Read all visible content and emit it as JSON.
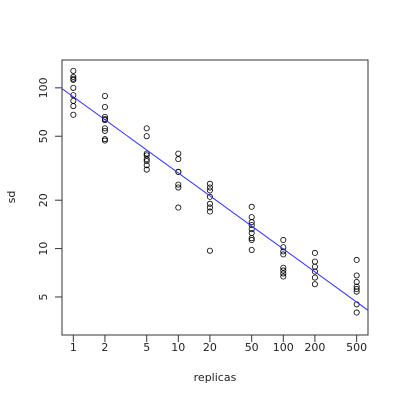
{
  "chart_data": {
    "type": "scatter",
    "x_label": "replicas",
    "y_label": "sd",
    "x_log": true,
    "y_log": true,
    "xlim": [
      0.78,
      641
    ],
    "ylim": [
      2.9,
      149
    ],
    "xticks": [
      1,
      2,
      5,
      10,
      20,
      50,
      100,
      200,
      500
    ],
    "yticks": [
      5,
      10,
      20,
      50,
      100
    ],
    "series": [
      {
        "x": [
          1,
          1,
          1,
          1,
          1,
          1,
          1,
          1,
          1,
          2,
          2,
          2,
          2,
          2,
          2,
          2,
          2,
          2,
          5,
          5,
          5,
          5,
          5,
          5,
          5,
          5,
          10,
          10,
          10,
          10,
          10,
          10,
          10,
          20,
          20,
          20,
          20,
          20,
          20,
          20,
          20,
          50,
          50,
          50,
          50,
          50,
          50,
          50,
          50,
          50,
          100,
          100,
          100,
          100,
          100,
          100,
          100,
          100,
          200,
          200,
          200,
          200,
          200,
          200,
          500,
          500,
          500,
          500,
          500,
          500,
          500,
          500
        ],
        "values": [
          127.6,
          117,
          114,
          112,
          100,
          90,
          83,
          77,
          68,
          89,
          76,
          66,
          64,
          63,
          56,
          54,
          48,
          47,
          56,
          50,
          39,
          38,
          36,
          35,
          33,
          31,
          39,
          36,
          30,
          30,
          25,
          24,
          18,
          25.3,
          24,
          23,
          21,
          19,
          18,
          17,
          9.7,
          18.2,
          15.7,
          14.6,
          14,
          13.2,
          12.5,
          11.6,
          11.3,
          9.8,
          11.3,
          10.2,
          9.6,
          9.2,
          7.6,
          7.3,
          7,
          6.7,
          9.4,
          8.3,
          7.7,
          7.2,
          6.6,
          6,
          8.5,
          6.8,
          6.2,
          5.8,
          5.6,
          5.4,
          4.5,
          4.0
        ],
        "color": "#000000",
        "mode": "points"
      },
      {
        "x": [
          0.78,
          641
        ],
        "values": [
          98.9,
          4.13
        ],
        "color": "#3030ff",
        "mode": "line"
      }
    ]
  }
}
